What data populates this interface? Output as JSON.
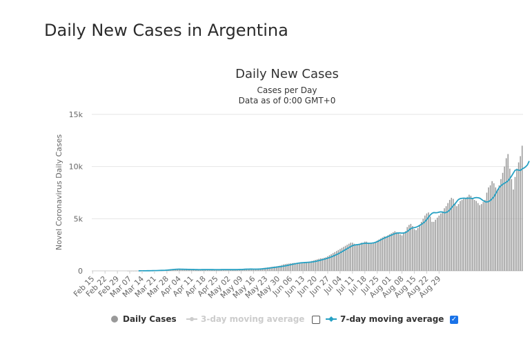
{
  "page": {
    "title": "Daily New Cases in Argentina"
  },
  "legend": {
    "daily": "Daily Cases",
    "ma3": "3-day moving average",
    "ma7": "7-day moving average",
    "ma3_checked": false,
    "ma7_checked": true
  },
  "chart_data": {
    "type": "bar",
    "title": "Daily New Cases",
    "subtitle": "Cases per Day",
    "subtitle2": "Data as of 0:00 GMT+0",
    "ylabel": "Novel Coronavirus Daily Cases",
    "xlabel": "",
    "ylim": [
      0,
      15000
    ],
    "yticks": [
      0,
      5000,
      10000,
      15000
    ],
    "ytick_labels": [
      "0",
      "5k",
      "10k",
      "15k"
    ],
    "xtick_labels": [
      "Feb 15",
      "Feb 22",
      "Feb 29",
      "Mar 07",
      "Mar 14",
      "Mar 21",
      "Mar 28",
      "Apr 04",
      "Apr 11",
      "Apr 18",
      "Apr 25",
      "May 02",
      "May 09",
      "May 16",
      "May 23",
      "May 30",
      "Jun 06",
      "Jun 13",
      "Jun 20",
      "Jun 27",
      "Jul 04",
      "Jul 11",
      "Jul 18",
      "Jul 25",
      "Aug 01",
      "Aug 08",
      "Aug 15",
      "Aug 22",
      "Aug 29"
    ],
    "grid": true,
    "colors": {
      "bars": "#999999",
      "ma7": "#25a0c3",
      "ma3": "#cccccc",
      "grid": "#e6e6e6"
    },
    "series": [
      {
        "name": "Daily Cases",
        "type": "bar",
        "values": [
          0,
          0,
          0,
          0,
          0,
          0,
          0,
          0,
          0,
          0,
          0,
          0,
          0,
          0,
          0,
          0,
          0,
          0,
          0,
          0,
          1,
          2,
          2,
          2,
          5,
          6,
          6,
          8,
          10,
          12,
          12,
          15,
          20,
          25,
          30,
          35,
          45,
          55,
          55,
          60,
          70,
          90,
          110,
          140,
          160,
          170,
          170,
          170,
          150,
          130,
          120,
          130,
          140,
          140,
          130,
          125,
          120,
          115,
          110,
          110,
          115,
          120,
          125,
          130,
          130,
          125,
          120,
          115,
          110,
          110,
          110,
          120,
          130,
          140,
          140,
          130,
          120,
          115,
          110,
          110,
          120,
          130,
          140,
          160,
          170,
          180,
          180,
          170,
          160,
          150,
          150,
          150,
          170,
          190,
          210,
          240,
          260,
          290,
          310,
          330,
          350,
          380,
          400,
          420,
          440,
          470,
          500,
          560,
          620,
          650,
          680,
          700,
          720,
          740,
          760,
          760,
          780,
          800,
          800,
          820,
          830,
          850,
          870,
          900,
          950,
          1000,
          1050,
          1100,
          1150,
          1200,
          1200,
          1250,
          1300,
          1400,
          1500,
          1600,
          1700,
          1800,
          1900,
          2000,
          2100,
          2200,
          2300,
          2400,
          2500,
          2600,
          2700,
          2700,
          2600,
          2500,
          2500,
          2600,
          2700,
          2700,
          2800,
          2800,
          2700,
          2600,
          2600,
          2700,
          2800,
          2900,
          3000,
          3100,
          3200,
          3300,
          3300,
          3400,
          3500,
          3600,
          3700,
          3800,
          3700,
          3600,
          3500,
          3400,
          3600,
          3800,
          4200,
          4400,
          4500,
          4300,
          4000,
          3900,
          4100,
          4400,
          4700,
          5000,
          5300,
          5500,
          5600,
          5200,
          4700,
          4700,
          4900,
          5100,
          5300,
          5500,
          5700,
          6000,
          6200,
          6500,
          6800,
          7000,
          6900,
          6500,
          6200,
          6400,
          6700,
          6800,
          6900,
          7000,
          7100,
          7300,
          7200,
          7000,
          6800,
          6700,
          6500,
          6300,
          6400,
          6600,
          6800,
          7500,
          8000,
          8200,
          8600,
          8400,
          8000,
          7800,
          8200,
          8800,
          9400,
          10000,
          10800,
          11200,
          9800,
          8800,
          7800,
          9000,
          9800,
          10400,
          11000,
          12000
        ]
      },
      {
        "name": "7-day moving average",
        "type": "line",
        "values": [
          null,
          null,
          null,
          null,
          null,
          null,
          null,
          null,
          null,
          null,
          null,
          null,
          null,
          null,
          null,
          null,
          null,
          null,
          null,
          null,
          null,
          null,
          null,
          null,
          null,
          null,
          5,
          6,
          7,
          8,
          10,
          11,
          13,
          16,
          19,
          23,
          27,
          33,
          39,
          44,
          50,
          57,
          68,
          82,
          98,
          116,
          134,
          150,
          158,
          161,
          158,
          154,
          149,
          146,
          142,
          139,
          134,
          128,
          123,
          119,
          117,
          117,
          118,
          120,
          122,
          123,
          122,
          121,
          119,
          117,
          115,
          115,
          117,
          120,
          123,
          125,
          125,
          124,
          121,
          119,
          118,
          119,
          122,
          127,
          134,
          143,
          152,
          161,
          167,
          169,
          168,
          166,
          165,
          166,
          170,
          177,
          189,
          205,
          223,
          244,
          266,
          289,
          312,
          334,
          356,
          378,
          400,
          424,
          451,
          482,
          516,
          552,
          589,
          626,
          663,
          697,
          727,
          753,
          771,
          785,
          796,
          807,
          818,
          831,
          849,
          873,
          904,
          941,
          981,
          1024,
          1070,
          1117,
          1164,
          1214,
          1271,
          1334,
          1404,
          1480,
          1557,
          1642,
          1733,
          1829,
          1929,
          2028,
          2128,
          2228,
          2328,
          2414,
          2470,
          2499,
          2514,
          2543,
          2586,
          2629,
          2643,
          2643,
          2643,
          2643,
          2657,
          2686,
          2729,
          2800,
          2886,
          2971,
          3057,
          3143,
          3214,
          3286,
          3357,
          3429,
          3500,
          3571,
          3614,
          3629,
          3629,
          3614,
          3629,
          3671,
          3771,
          3914,
          4057,
          4114,
          4143,
          4186,
          4257,
          4357,
          4457,
          4571,
          4714,
          4914,
          5143,
          5357,
          5514,
          5586,
          5571,
          5586,
          5629,
          5657,
          5629,
          5571,
          5600,
          5686,
          5829,
          6043,
          6257,
          6414,
          6643,
          6843,
          6929,
          6957,
          6971,
          6957,
          6957,
          6971,
          6957,
          6929,
          7000,
          7029,
          7014,
          6971,
          6857,
          6729,
          6629,
          6600,
          6643,
          6743,
          6914,
          7100,
          7386,
          7700,
          7986,
          8157,
          8300,
          8400,
          8500,
          8628,
          8842,
          9085,
          9370,
          9642,
          9700,
          9657,
          9628,
          9771,
          9857,
          9985,
          10157,
          10528
        ]
      }
    ]
  }
}
